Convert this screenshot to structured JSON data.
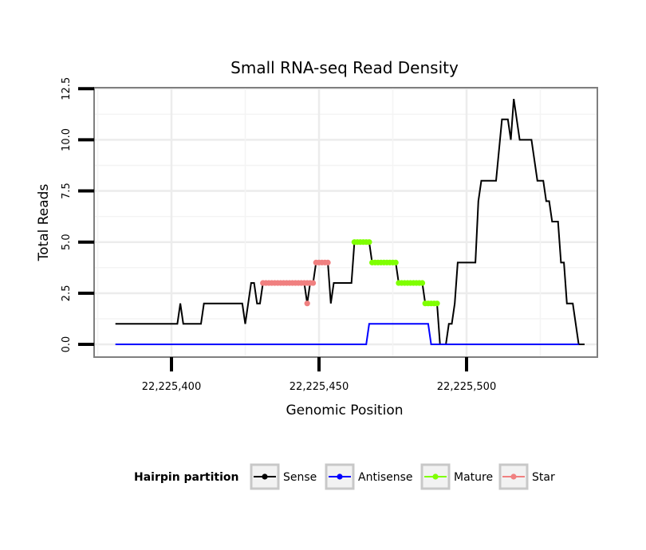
{
  "chart_data": {
    "type": "line",
    "title": "Small RNA-seq Read Density",
    "xlabel": "Genomic Position",
    "ylabel": "Total Reads",
    "xlim": [
      22225373,
      22225543
    ],
    "ylim": [
      -0.3,
      12.9
    ],
    "x_ticks": [
      22225400,
      22225450,
      22225500
    ],
    "x_tick_labels": [
      "22,225,400",
      "22,225,450",
      "22,225,500"
    ],
    "y_ticks": [
      0,
      2.5,
      5,
      7.5,
      10,
      12.5
    ],
    "y_tick_labels": [
      "0.0",
      "2.5",
      "5.0",
      "7.5",
      "10.0",
      "12.5"
    ],
    "grid": true,
    "legend": {
      "title": "Hairpin partition",
      "position": "bottom",
      "entries": [
        {
          "name": "Sense",
          "color": "#000000"
        },
        {
          "name": "Antisense",
          "color": "#0000FF"
        },
        {
          "name": "Mature",
          "color": "#7FFF00"
        },
        {
          "name": "Star",
          "color": "#F08080"
        }
      ]
    },
    "series": [
      {
        "name": "Sense",
        "color": "#000000",
        "points": [
          [
            22225381,
            1
          ],
          [
            22225402,
            1
          ],
          [
            22225403,
            2
          ],
          [
            22225404,
            1
          ],
          [
            22225410,
            1
          ],
          [
            22225411,
            2
          ],
          [
            22225424,
            2
          ],
          [
            22225425,
            1
          ],
          [
            22225427,
            3
          ],
          [
            22225428,
            3
          ],
          [
            22225429,
            2
          ],
          [
            22225430,
            2
          ],
          [
            22225431,
            3
          ],
          [
            22225445,
            3
          ],
          [
            22225446,
            2
          ],
          [
            22225447,
            3
          ],
          [
            22225448,
            3
          ],
          [
            22225449,
            4
          ],
          [
            22225453,
            4
          ],
          [
            22225454,
            2
          ],
          [
            22225455,
            3
          ],
          [
            22225461,
            3
          ],
          [
            22225462,
            5
          ],
          [
            22225467,
            5
          ],
          [
            22225468,
            4
          ],
          [
            22225476,
            4
          ],
          [
            22225477,
            3
          ],
          [
            22225485,
            3
          ],
          [
            22225486,
            2
          ],
          [
            22225490,
            2
          ],
          [
            22225491,
            0
          ],
          [
            22225493,
            0
          ],
          [
            22225494,
            1
          ],
          [
            22225495,
            1
          ],
          [
            22225496,
            2
          ],
          [
            22225497,
            4
          ],
          [
            22225503,
            4
          ],
          [
            22225504,
            7
          ],
          [
            22225505,
            8
          ],
          [
            22225510,
            8
          ],
          [
            22225512,
            11
          ],
          [
            22225514,
            11
          ],
          [
            22225515,
            10
          ],
          [
            22225516,
            12
          ],
          [
            22225518,
            10
          ],
          [
            22225522,
            10
          ],
          [
            22225524,
            8
          ],
          [
            22225526,
            8
          ],
          [
            22225527,
            7
          ],
          [
            22225528,
            7
          ],
          [
            22225529,
            6
          ],
          [
            22225531,
            6
          ],
          [
            22225532,
            4
          ],
          [
            22225533,
            4
          ],
          [
            22225534,
            2
          ],
          [
            22225536,
            2
          ],
          [
            22225538,
            0
          ],
          [
            22225540,
            0
          ]
        ]
      },
      {
        "name": "Antisense",
        "color": "#0000FF",
        "points": [
          [
            22225381,
            0
          ],
          [
            22225466,
            0
          ],
          [
            22225467,
            1
          ],
          [
            22225487,
            1
          ],
          [
            22225488,
            0
          ],
          [
            22225538,
            0
          ]
        ]
      },
      {
        "name": "Mature",
        "color": "#7FFF00",
        "segments": [
          {
            "x": [
              22225462,
              22225467
            ],
            "y": 5
          },
          {
            "x": [
              22225468,
              22225476
            ],
            "y": 4
          },
          {
            "x": [
              22225477,
              22225485
            ],
            "y": 3
          },
          {
            "x": [
              22225486,
              22225490
            ],
            "y": 2
          }
        ]
      },
      {
        "name": "Star",
        "color": "#F08080",
        "segments": [
          {
            "x": [
              22225431,
              22225448
            ],
            "y": 3
          },
          {
            "x": [
              22225446,
              22225446
            ],
            "y": 2
          },
          {
            "x": [
              22225449,
              22225453
            ],
            "y": 4
          }
        ]
      }
    ]
  }
}
